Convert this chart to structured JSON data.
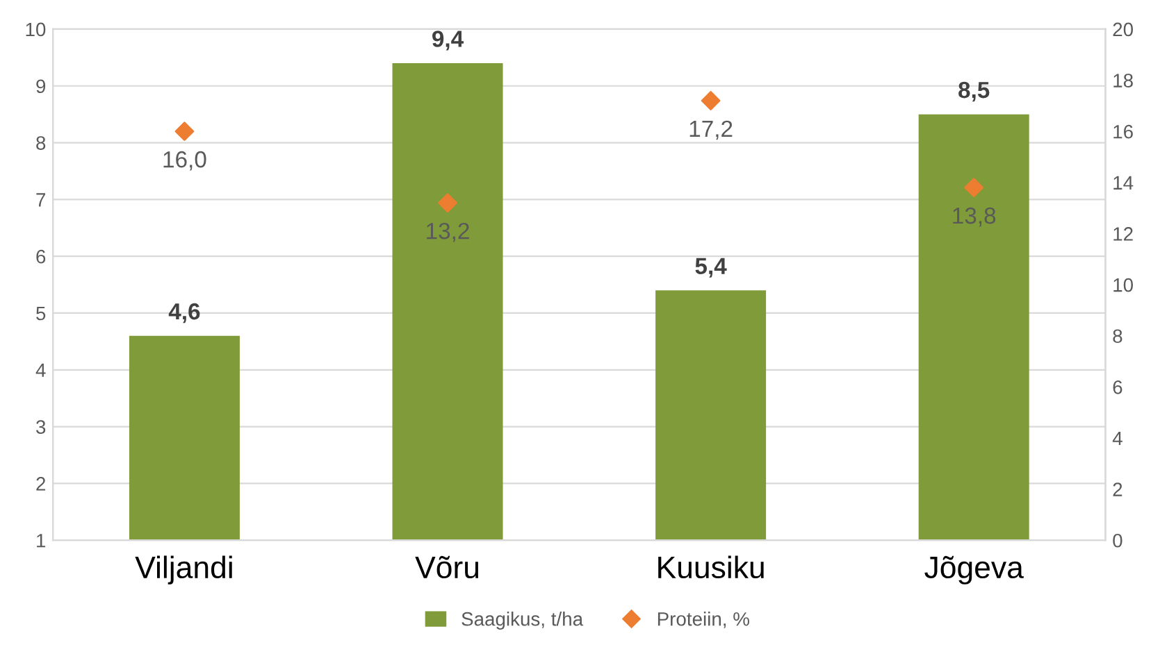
{
  "chart_data": {
    "type": "bar",
    "categories": [
      "Viljandi",
      "Võru",
      "Kuusiku",
      "Jõgeva"
    ],
    "series": [
      {
        "name": "Saagikus, t/ha",
        "color": "#809b3a",
        "values": [
          4.6,
          9.4,
          5.4,
          8.5
        ],
        "value_labels": [
          "4,6",
          "9,4",
          "5,4",
          "8,5"
        ]
      },
      {
        "name": "Proteiin, %",
        "type": "scatter",
        "axis": "y2",
        "color": "#ed7d31",
        "marker": "diamond",
        "values": [
          16.0,
          13.2,
          17.2,
          13.8
        ],
        "value_labels": [
          "16,0",
          "13,2",
          "17,2",
          "13,8"
        ]
      }
    ],
    "ylim": [
      1,
      10
    ],
    "yticks": [
      1,
      2,
      3,
      4,
      5,
      6,
      7,
      8,
      9,
      10
    ],
    "y2lim": [
      0,
      20
    ],
    "y2ticks": [
      0,
      2,
      4,
      6,
      8,
      10,
      12,
      14,
      16,
      18,
      20
    ],
    "grid": "y",
    "legend": "bottom"
  }
}
